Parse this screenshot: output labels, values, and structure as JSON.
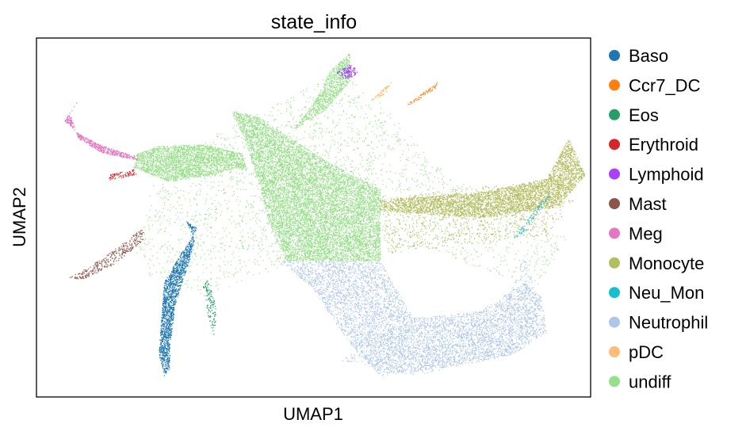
{
  "chart_data": {
    "type": "scatter",
    "title": "state_info",
    "xlabel": "UMAP1",
    "ylabel": "UMAP2",
    "ticks": "none",
    "grid": false,
    "legend_position": "right",
    "xlim": [
      0,
      100
    ],
    "ylim": [
      0,
      100
    ],
    "series": [
      {
        "name": "Baso",
        "color": "#1f77b4",
        "regions": [
          {
            "path": [
              [
                27.0,
                49.0
              ],
              [
                29.0,
                47.0
              ],
              [
                26.0,
                40.0
              ],
              [
                23.0,
                32.0
              ],
              [
                22.5,
                22.0
              ],
              [
                22.0,
                12.0
              ],
              [
                23.0,
                6.0
              ],
              [
                24.0,
                8.0
              ],
              [
                24.0,
                14.0
              ],
              [
                25.0,
                26.0
              ],
              [
                27.5,
                38.0
              ],
              [
                28.5,
                44.0
              ]
            ],
            "count": 1700
          }
        ]
      },
      {
        "name": "Ccr7_DC",
        "color": "#ff7f0e",
        "regions": [
          {
            "path": [
              [
                66.0,
                81.0
              ],
              [
                69.0,
                84.0
              ],
              [
                72.5,
                88.0
              ],
              [
                72.0,
                86.0
              ],
              [
                68.0,
                82.0
              ]
            ],
            "count": 70
          }
        ]
      },
      {
        "name": "Eos",
        "color": "#279e68",
        "regions": [
          {
            "path": [
              [
                30.0,
                31.0
              ],
              [
                31.0,
                33.0
              ],
              [
                32.5,
                24.0
              ],
              [
                32.0,
                17.0
              ],
              [
                31.0,
                22.0
              ]
            ],
            "count": 130
          }
        ]
      },
      {
        "name": "Erythroid",
        "color": "#d62728",
        "regions": [
          {
            "path": [
              [
                13.0,
                62.0
              ],
              [
                17.5,
                63.5
              ],
              [
                18.0,
                62.0
              ],
              [
                13.0,
                60.5
              ]
            ],
            "count": 90
          }
        ]
      },
      {
        "name": "Lymphoid",
        "color": "#aa40fc",
        "regions": [
          {
            "path": [
              [
                54.0,
                90.5
              ],
              [
                57.0,
                93.0
              ],
              [
                58.0,
                90.0
              ],
              [
                55.5,
                88.5
              ]
            ],
            "count": 120
          }
        ]
      },
      {
        "name": "Mast",
        "color": "#8c564b",
        "regions": [
          {
            "path": [
              [
                5.5,
                33.0
              ],
              [
                9.0,
                36.0
              ],
              [
                13.0,
                40.0
              ],
              [
                19.0,
                47.0
              ],
              [
                19.5,
                44.0
              ],
              [
                14.0,
                37.0
              ],
              [
                8.5,
                33.0
              ]
            ],
            "count": 350
          }
        ]
      },
      {
        "name": "Meg",
        "color": "#e377c2",
        "regions": [
          {
            "path": [
              [
                5.0,
                77.0
              ],
              [
                8.0,
                73.0
              ],
              [
                12.0,
                70.0
              ],
              [
                17.0,
                67.5
              ],
              [
                18.5,
                66.0
              ],
              [
                12.0,
                68.0
              ],
              [
                7.5,
                72.0
              ],
              [
                6.0,
                79.0
              ],
              [
                8.0,
                84.0
              ]
            ],
            "count": 520
          }
        ]
      },
      {
        "name": "Monocyte",
        "color": "#b5bd61",
        "regions": [
          {
            "path": [
              [
                62.0,
                52.0
              ],
              [
                80.0,
                50.0
              ],
              [
                94.0,
                53.0
              ],
              [
                99.0,
                62.0
              ],
              [
                96.0,
                72.0
              ],
              [
                92.0,
                61.0
              ],
              [
                80.0,
                57.0
              ],
              [
                62.0,
                55.0
              ]
            ],
            "count": 3800
          },
          {
            "path": [
              [
                63.0,
                40.0
              ],
              [
                75.0,
                42.0
              ],
              [
                92.0,
                45.0
              ],
              [
                97.0,
                55.0
              ],
              [
                90.0,
                60.0
              ],
              [
                75.0,
                58.0
              ],
              [
                63.0,
                55.0
              ]
            ],
            "count": 900
          }
        ]
      },
      {
        "name": "Neu_Mon",
        "color": "#17becf",
        "regions": [
          {
            "path": [
              [
                86.0,
                44.0
              ],
              [
                91.0,
                55.0
              ],
              [
                93.0,
                57.0
              ],
              [
                88.0,
                46.0
              ]
            ],
            "count": 80
          }
        ]
      },
      {
        "name": "Neutrophil",
        "color": "#aec7e8",
        "regions": [
          {
            "path": [
              [
                44.0,
                38.0
              ],
              [
                50.0,
                30.0
              ],
              [
                56.0,
                16.0
              ],
              [
                62.0,
                6.0
              ],
              [
                72.0,
                8.0
              ],
              [
                86.0,
                12.0
              ],
              [
                92.0,
                18.0
              ],
              [
                91.0,
                28.0
              ],
              [
                88.0,
                32.0
              ],
              [
                80.0,
                24.0
              ],
              [
                68.0,
                22.0
              ],
              [
                62.0,
                38.0
              ]
            ],
            "count": 5200
          },
          {
            "path": [
              [
                55.0,
                10.0
              ],
              [
                68.0,
                6.0
              ],
              [
                86.0,
                12.0
              ],
              [
                91.0,
                24.0
              ],
              [
                88.0,
                40.0
              ],
              [
                84.0,
                24.0
              ],
              [
                70.0,
                16.0
              ],
              [
                60.0,
                18.0
              ]
            ],
            "count": 900
          }
        ]
      },
      {
        "name": "pDC",
        "color": "#ffbb78",
        "regions": [
          {
            "path": [
              [
                60.0,
                82.5
              ],
              [
                63.0,
                84.5
              ],
              [
                64.0,
                88.0
              ],
              [
                61.5,
                84.5
              ]
            ],
            "count": 60
          }
        ]
      },
      {
        "name": "undiff",
        "color": "#98df8a",
        "regions": [
          {
            "path": [
              [
                17.5,
                64.0
              ],
              [
                24.0,
                60.0
              ],
              [
                32.0,
                62.0
              ],
              [
                36.0,
                64.0
              ],
              [
                38.0,
                63.0
              ],
              [
                37.0,
                68.0
              ],
              [
                30.0,
                70.5
              ],
              [
                22.0,
                70.0
              ],
              [
                17.5,
                67.5
              ]
            ],
            "count": 2600
          },
          {
            "path": [
              [
                35.0,
                80.0
              ],
              [
                40.0,
                78.0
              ],
              [
                46.0,
                72.0
              ],
              [
                52.0,
                66.0
              ],
              [
                57.0,
                62.0
              ],
              [
                62.0,
                58.0
              ],
              [
                62.0,
                38.0
              ],
              [
                45.0,
                38.0
              ],
              [
                42.0,
                48.0
              ],
              [
                40.0,
                60.0
              ],
              [
                37.5,
                72.0
              ]
            ],
            "count": 9000
          },
          {
            "path": [
              [
                50.0,
                82.0
              ],
              [
                53.0,
                91.0
              ],
              [
                56.5,
                96.0
              ],
              [
                56.5,
                88.0
              ],
              [
                52.0,
                80.0
              ],
              [
                46.0,
                74.0
              ]
            ],
            "count": 900
          },
          {
            "path": [
              [
                18.0,
                40.0
              ],
              [
                21.0,
                64.0
              ],
              [
                38.0,
                78.0
              ],
              [
                56.0,
                92.0
              ],
              [
                74.0,
                62.0
              ],
              [
                96.0,
                45.0
              ],
              [
                90.0,
                30.0
              ],
              [
                70.0,
                42.0
              ],
              [
                50.0,
                40.0
              ],
              [
                30.0,
                28.0
              ],
              [
                20.0,
                34.0
              ]
            ],
            "count": 2600
          }
        ]
      }
    ]
  }
}
